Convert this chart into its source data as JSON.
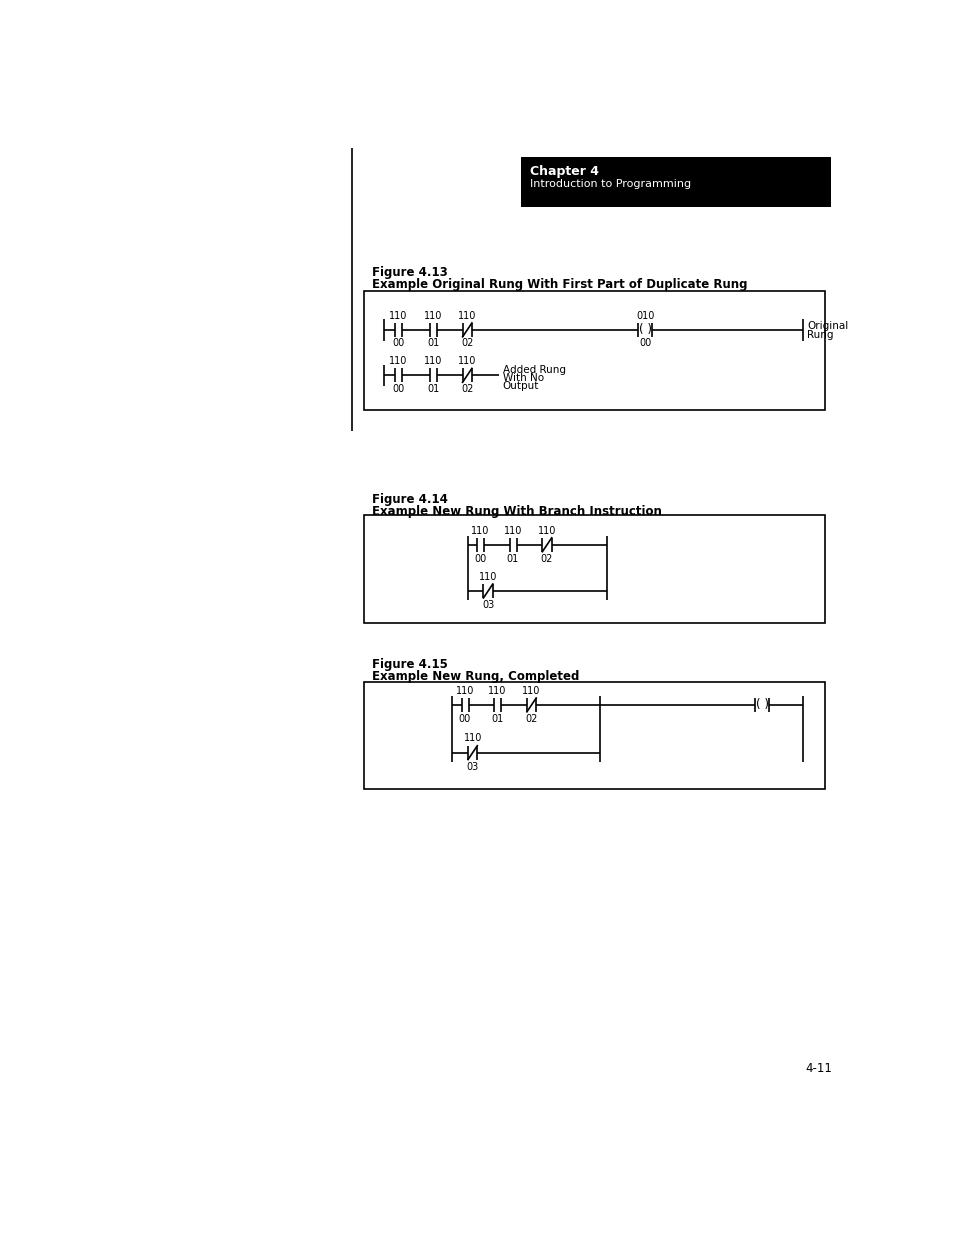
{
  "page_bg": "#ffffff",
  "header_title": "Chapter 4",
  "header_subtitle": "Introduction to Programming",
  "fig13_label": "Figure 4.13",
  "fig13_title": "Example Original Rung With First Part of Duplicate Rung",
  "fig14_label": "Figure 4.14",
  "fig14_title": "Example New Rung With Branch Instruction",
  "fig15_label": "Figure 4.15",
  "fig15_title": "Example New Rung, Completed",
  "page_number": "4-11"
}
